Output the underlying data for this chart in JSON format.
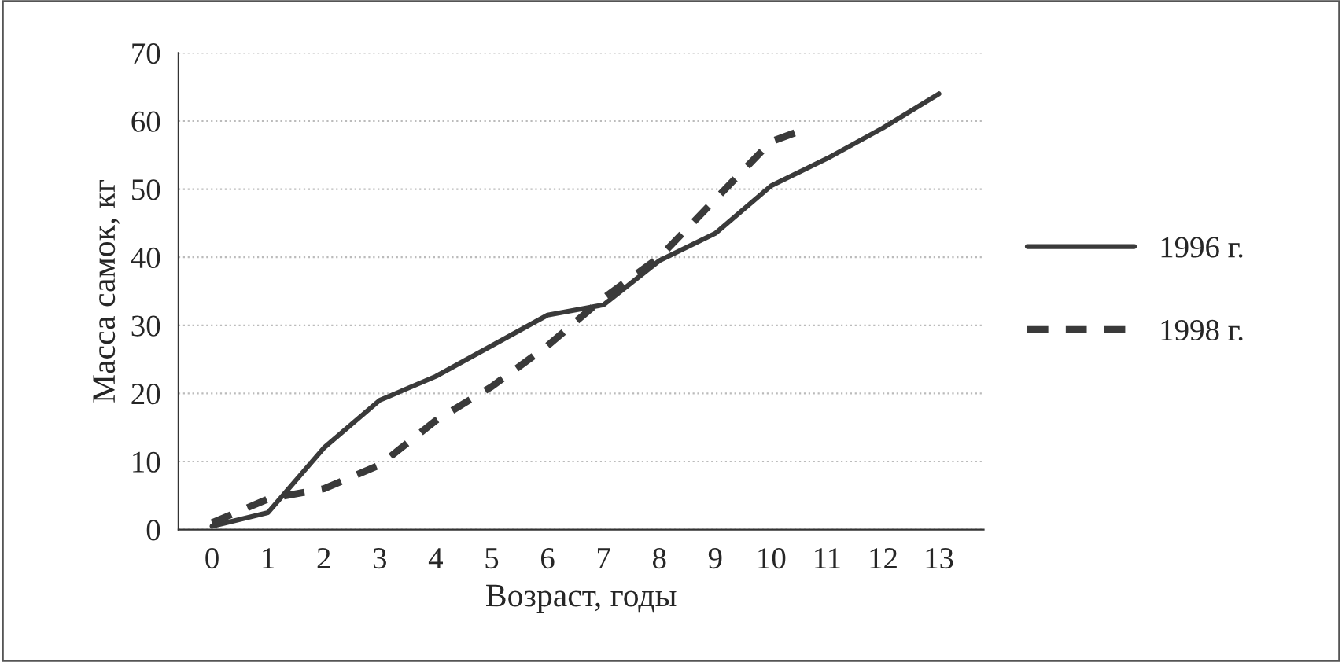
{
  "chart_data": {
    "type": "line",
    "xlabel": "Возраст, годы",
    "ylabel": "Масса самок, кг",
    "x": [
      0,
      1,
      2,
      3,
      4,
      5,
      6,
      7,
      8,
      9,
      10,
      11,
      12,
      13
    ],
    "xlim": [
      -0.6,
      13.8
    ],
    "xticks": [
      0,
      1,
      2,
      3,
      4,
      5,
      6,
      7,
      8,
      9,
      10,
      11,
      12,
      13
    ],
    "ylim": [
      0,
      70
    ],
    "yticks": [
      0,
      10,
      20,
      30,
      40,
      50,
      60,
      70
    ],
    "grid": "y",
    "legend": "right",
    "marker": "none",
    "series": [
      {
        "name": "1996 г.",
        "color": "#3a3a3a",
        "line_style": "solid",
        "values": [
          0.5,
          2.5,
          12,
          19,
          22.5,
          27,
          31.5,
          33,
          39.5,
          43.5,
          50.5,
          54.5,
          59,
          64
        ]
      },
      {
        "name": "1998 г.",
        "color": "#3a3a3a",
        "line_style": "dashed",
        "x": [
          0,
          1,
          2,
          3,
          4,
          5,
          6,
          7,
          8,
          9,
          10,
          10.5
        ],
        "values": [
          1,
          4.5,
          6,
          9.5,
          16,
          21,
          27,
          34,
          40,
          48.5,
          57,
          58.5
        ]
      }
    ]
  }
}
